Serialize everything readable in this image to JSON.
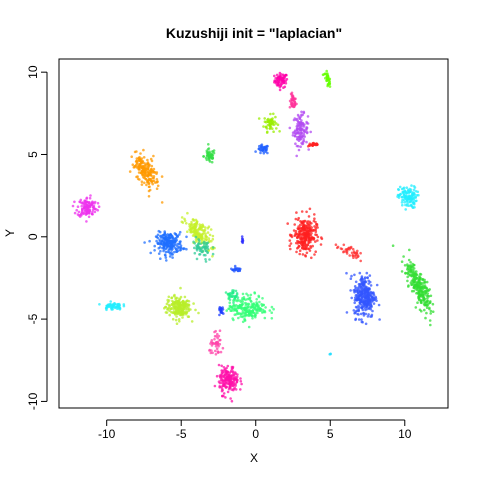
{
  "chart_data": {
    "type": "scatter",
    "title": "Kuzushiji init = \"laplacian\"",
    "xlabel": "X",
    "ylabel": "Y",
    "xlim": [
      -13.2,
      12.9
    ],
    "ylim": [
      -10.4,
      10.8
    ],
    "xticks": [
      -10,
      -5,
      0,
      5,
      10
    ],
    "yticks": [
      -10,
      -5,
      0,
      5,
      10
    ],
    "xtick_labels": [
      "-10",
      "-5",
      "0",
      "5",
      "10"
    ],
    "ytick_labels": [
      "-10",
      "-5",
      "0",
      "5",
      "10"
    ],
    "grid": false,
    "legend": "none",
    "clusters": [
      {
        "color": "#ff00aa",
        "center": [
          1.7,
          9.5
        ],
        "spread": [
          0.4,
          0.4
        ],
        "density": 70,
        "angle": 0
      },
      {
        "color": "#ff3399",
        "center": [
          2.5,
          8.2
        ],
        "spread": [
          0.2,
          0.4
        ],
        "density": 40,
        "angle": 0
      },
      {
        "color": "#66ff00",
        "center": [
          4.8,
          9.6
        ],
        "spread": [
          0.15,
          0.55
        ],
        "density": 40,
        "angle": 20
      },
      {
        "color": "#99ee00",
        "center": [
          1.0,
          6.9
        ],
        "spread": [
          0.4,
          0.45
        ],
        "density": 55,
        "angle": 0
      },
      {
        "color": "#b24bf2",
        "center": [
          3.0,
          6.5
        ],
        "spread": [
          0.45,
          0.85
        ],
        "density": 120,
        "angle": 0
      },
      {
        "color": "#ff2222",
        "center": [
          3.9,
          5.6
        ],
        "spread": [
          0.35,
          0.1
        ],
        "density": 25,
        "angle": 0
      },
      {
        "color": "#33dd44",
        "center": [
          -3.1,
          4.9
        ],
        "spread": [
          0.35,
          0.4
        ],
        "density": 50,
        "angle": 0
      },
      {
        "color": "#1f5fff",
        "center": [
          0.5,
          5.3
        ],
        "spread": [
          0.35,
          0.25
        ],
        "density": 35,
        "angle": 0
      },
      {
        "color": "#ff9900",
        "center": [
          -7.4,
          4.0
        ],
        "spread": [
          0.55,
          1.0
        ],
        "density": 200,
        "angle": 35
      },
      {
        "color": "#ee33ee",
        "center": [
          -11.3,
          1.8
        ],
        "spread": [
          0.6,
          0.55
        ],
        "density": 120,
        "angle": 0
      },
      {
        "color": "#22eeff",
        "center": [
          10.2,
          2.4
        ],
        "spread": [
          0.55,
          0.6
        ],
        "density": 120,
        "angle": 0
      },
      {
        "color": "#1f6fff",
        "center": [
          -5.8,
          -0.4
        ],
        "spread": [
          0.8,
          0.6
        ],
        "density": 220,
        "angle": 0
      },
      {
        "color": "#c6f02a",
        "center": [
          -3.8,
          0.2
        ],
        "spread": [
          0.5,
          1.0
        ],
        "density": 170,
        "angle": 45
      },
      {
        "color": "#ff2020",
        "center": [
          3.3,
          0.1
        ],
        "spread": [
          0.7,
          1.0
        ],
        "density": 260,
        "angle": 0
      },
      {
        "color": "#ff3030",
        "center": [
          6.2,
          -0.9
        ],
        "spread": [
          0.7,
          0.3
        ],
        "density": 40,
        "angle": -30
      },
      {
        "color": "#3355ff",
        "center": [
          7.3,
          -3.6
        ],
        "spread": [
          0.65,
          1.2
        ],
        "density": 300,
        "angle": 0
      },
      {
        "color": "#33dd33",
        "center": [
          10.9,
          -3.0
        ],
        "spread": [
          0.45,
          1.5
        ],
        "density": 250,
        "angle": 25
      },
      {
        "color": "#b8ee2a",
        "center": [
          -5.2,
          -4.3
        ],
        "spread": [
          0.75,
          0.6
        ],
        "density": 200,
        "angle": 0
      },
      {
        "color": "#33ff77",
        "center": [
          -0.5,
          -4.3
        ],
        "spread": [
          1.2,
          0.7
        ],
        "density": 210,
        "angle": 0
      },
      {
        "color": "#22ee88",
        "center": [
          -1.6,
          -3.5
        ],
        "spread": [
          0.3,
          0.3
        ],
        "density": 30,
        "angle": 0
      },
      {
        "color": "#22eeff",
        "center": [
          -9.6,
          -4.2
        ],
        "spread": [
          0.55,
          0.2
        ],
        "density": 60,
        "angle": 0
      },
      {
        "color": "#ff10aa",
        "center": [
          -1.8,
          -8.7
        ],
        "spread": [
          0.6,
          0.75
        ],
        "density": 180,
        "angle": 0
      },
      {
        "color": "#ff44aa",
        "center": [
          -2.6,
          -6.6
        ],
        "spread": [
          0.45,
          0.6
        ],
        "density": 45,
        "angle": 0
      },
      {
        "color": "#1f3fff",
        "center": [
          -2.3,
          -4.5
        ],
        "spread": [
          0.15,
          0.25
        ],
        "density": 20,
        "angle": 0
      },
      {
        "color": "#2255ff",
        "center": [
          -1.3,
          -2.0
        ],
        "spread": [
          0.35,
          0.12
        ],
        "density": 20,
        "angle": 0
      },
      {
        "color": "#2b2bff",
        "center": [
          -0.9,
          -0.2
        ],
        "spread": [
          0.05,
          0.15
        ],
        "density": 8,
        "angle": 0
      },
      {
        "color": "#33cc99",
        "center": [
          -3.6,
          -0.8
        ],
        "spread": [
          0.6,
          0.7
        ],
        "density": 60,
        "angle": 0
      },
      {
        "color": "#22ddff",
        "center": [
          5.0,
          -7.1
        ],
        "spread": [
          0.05,
          0.05
        ],
        "density": 3,
        "angle": 0
      }
    ]
  }
}
